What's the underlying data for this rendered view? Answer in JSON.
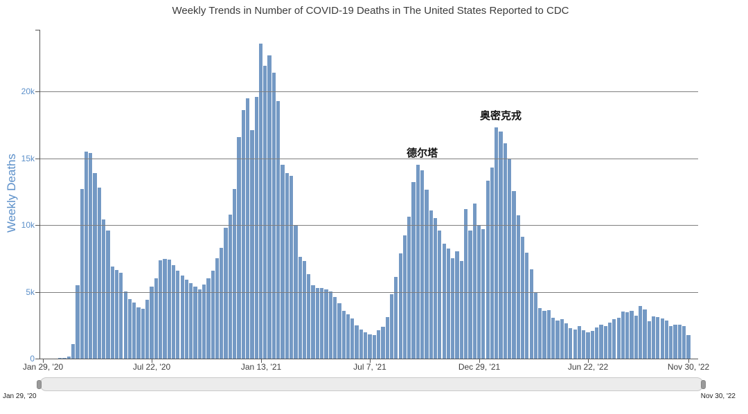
{
  "title": {
    "text": "Weekly Trends in Number of COVID-19 Deaths in The United States Reported to CDC"
  },
  "chart_data": {
    "type": "bar",
    "title": "Weekly Trends in Number of COVID-19 Deaths in The United States Reported to CDC",
    "ylabel": "Weekly Deaths",
    "xlabel": "",
    "unit": "deaths per week",
    "start_week": "Jan 29, 2020",
    "interval": "weekly",
    "grid": true,
    "legend": false,
    "ylim": [
      0,
      24600
    ],
    "y_ticks": [
      {
        "label": "0",
        "value": 0
      },
      {
        "label": "5k",
        "value": 5000
      },
      {
        "label": "10k",
        "value": 10000
      },
      {
        "label": "15k",
        "value": 15000
      },
      {
        "label": "20k",
        "value": 20000
      }
    ],
    "x_ticks": [
      {
        "label": "Jan 29, '20",
        "week_index": 0
      },
      {
        "label": "Jul 22, '20",
        "week_index": 25
      },
      {
        "label": "Jan 13, '21",
        "week_index": 50
      },
      {
        "label": "Jul 7, '21",
        "week_index": 75
      },
      {
        "label": "Dec 29, '21",
        "week_index": 100
      },
      {
        "label": "Jun 22, '22",
        "week_index": 125
      },
      {
        "label": "Nov 30, '22",
        "week_index": 148
      }
    ],
    "values": [
      0,
      0,
      0,
      0,
      10,
      40,
      160,
      1100,
      5500,
      12700,
      15500,
      15400,
      13900,
      12800,
      10400,
      9600,
      6900,
      6650,
      6400,
      5000,
      4450,
      4200,
      3850,
      3750,
      4400,
      5400,
      6000,
      7350,
      7450,
      7400,
      7000,
      6600,
      6200,
      5900,
      5650,
      5400,
      5200,
      5550,
      6000,
      6600,
      7500,
      8300,
      9800,
      10800,
      12700,
      16600,
      18600,
      19500,
      17100,
      19600,
      23600,
      21900,
      22700,
      21400,
      19300,
      14500,
      13900,
      13700,
      10000,
      7600,
      7300,
      6300,
      5500,
      5300,
      5300,
      5200,
      5000,
      4600,
      4150,
      3600,
      3300,
      3000,
      2500,
      2200,
      1950,
      1800,
      1750,
      2100,
      2400,
      3100,
      4800,
      6100,
      7900,
      9200,
      10600,
      13200,
      14500,
      14100,
      12650,
      11100,
      10500,
      9600,
      8600,
      8250,
      7500,
      8050,
      7300,
      11200,
      9600,
      11600,
      9950,
      9700,
      13300,
      14300,
      17300,
      17000,
      16100,
      14900,
      12550,
      10700,
      9100,
      7950,
      6700,
      4950,
      3760,
      3560,
      3630,
      3040,
      2860,
      2970,
      2640,
      2290,
      2170,
      2410,
      2120,
      1980,
      2070,
      2340,
      2520,
      2450,
      2720,
      2930,
      3070,
      3510,
      3450,
      3560,
      3210,
      3940,
      3680,
      2810,
      3160,
      3110,
      2980,
      2860,
      2460,
      2520,
      2520,
      2410,
      1770
    ],
    "annotations": [
      {
        "text": "德尔塔",
        "week_index": 86
      },
      {
        "text": "奥密克戎",
        "week_index": 104
      }
    ]
  },
  "colors": {
    "title": "#3b3b3b",
    "axis": "#555555",
    "grid": "#7e7e7e",
    "bar": "#7499c4",
    "y_axis_text": "#5b8fc9",
    "x_axis_text": "#3d3d3d",
    "annotation": "#111111",
    "navigator_track": "#ececec",
    "navigator_handle": "#9a9a9a"
  },
  "navigator": {
    "start_label": "Jan 29, '20",
    "end_label": "Nov 30, '22"
  }
}
